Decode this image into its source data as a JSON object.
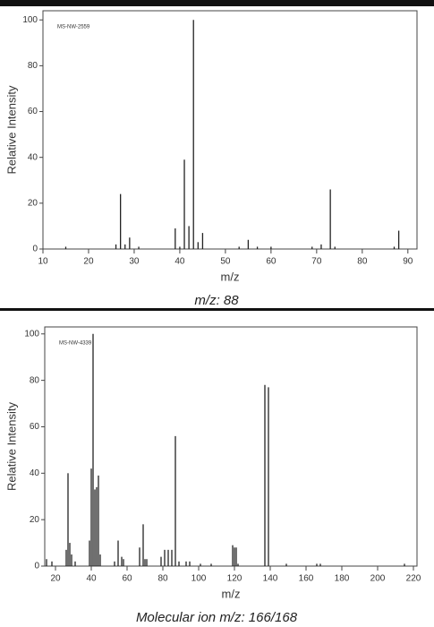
{
  "chart_data": [
    {
      "type": "stem",
      "annotation": "MS-NW-2559",
      "xlabel": "m/z",
      "ylabel": "Relative Intensity",
      "caption": "m/z: 88",
      "x": [
        15,
        26,
        27,
        28,
        29,
        31,
        39,
        40,
        41,
        42,
        43,
        44,
        45,
        53,
        55,
        57,
        60,
        69,
        71,
        73,
        74,
        87,
        88
      ],
      "values": [
        1,
        2,
        24,
        2,
        5,
        1,
        9,
        1,
        39,
        10,
        100,
        3,
        7,
        1,
        4,
        1,
        1,
        1,
        2,
        26,
        1,
        1,
        8
      ],
      "color": "#222222",
      "xlim": [
        10,
        92
      ],
      "ylim": [
        0,
        104
      ],
      "xticks": [
        10,
        20,
        30,
        40,
        50,
        60,
        70,
        80,
        90
      ],
      "yticks": [
        0,
        20,
        40,
        60,
        80,
        100
      ]
    },
    {
      "type": "stem",
      "annotation": "MS-NW-4339",
      "xlabel": "m/z",
      "ylabel": "Relative Intensity",
      "caption": "Molecular ion m/z: 166/168",
      "x": [
        15,
        18,
        26,
        27,
        28,
        29,
        31,
        39,
        40,
        41,
        42,
        43,
        44,
        45,
        53,
        55,
        57,
        58,
        67,
        69,
        70,
        71,
        79,
        81,
        83,
        85,
        87,
        89,
        93,
        95,
        101,
        107,
        119,
        120,
        121,
        122,
        137,
        139,
        149,
        166,
        168,
        215
      ],
      "values": [
        3,
        2,
        7,
        40,
        10,
        5,
        2,
        11,
        42,
        100,
        33,
        34,
        39,
        5,
        2,
        11,
        4,
        3,
        8,
        18,
        3,
        3,
        4,
        7,
        7,
        7,
        56,
        2,
        2,
        2,
        1,
        1,
        9,
        8,
        8,
        1,
        78,
        77,
        1,
        1,
        1,
        1
      ],
      "color": "#222222",
      "xlim": [
        14,
        222
      ],
      "ylim": [
        0,
        103
      ],
      "xticks": [
        20,
        40,
        60,
        80,
        100,
        120,
        140,
        160,
        180,
        200,
        220
      ],
      "yticks": [
        0,
        20,
        40,
        60,
        80,
        100
      ]
    }
  ]
}
